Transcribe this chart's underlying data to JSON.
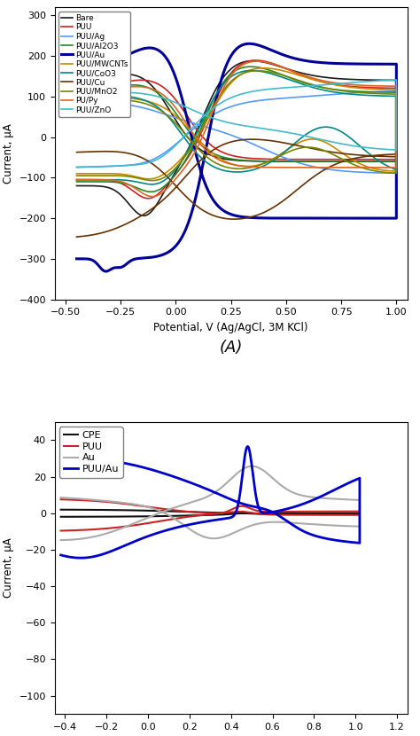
{
  "panel_A": {
    "xlabel": "Potential, V (Ag/AgCl, 3M KCl)",
    "ylabel": "Current, μA",
    "xlim": [
      -0.55,
      1.05
    ],
    "ylim": [
      -400,
      320
    ],
    "xticks": [
      -0.5,
      -0.25,
      0.0,
      0.25,
      0.5,
      0.75,
      1.0
    ],
    "yticks": [
      -400,
      -300,
      -200,
      -100,
      0,
      100,
      200,
      300
    ],
    "series": [
      {
        "label": "Bare",
        "color": "#1a1a1a",
        "lw": 1.2
      },
      {
        "label": "PUU",
        "color": "#cc2222",
        "lw": 1.2
      },
      {
        "label": "PUU/Ag",
        "color": "#5599ff",
        "lw": 1.2
      },
      {
        "label": "PUU/Al2O3",
        "color": "#228b22",
        "lw": 1.2
      },
      {
        "label": "PUU/Au",
        "color": "#000099",
        "lw": 2.2
      },
      {
        "label": "PUU/MWCNTs",
        "color": "#cc8800",
        "lw": 1.2
      },
      {
        "label": "PUU/CoO3",
        "color": "#008888",
        "lw": 1.2
      },
      {
        "label": "PUU/Cu",
        "color": "#663300",
        "lw": 1.2
      },
      {
        "label": "PUU/MnO2",
        "color": "#778800",
        "lw": 1.2
      },
      {
        "label": "PU/Py",
        "color": "#dd6622",
        "lw": 1.2
      },
      {
        "label": "PUU/ZnO",
        "color": "#44bbcc",
        "lw": 1.2
      }
    ]
  },
  "panel_B": {
    "xlabel": "Potential, V",
    "ylabel": "Current, μA",
    "xlim": [
      -0.45,
      1.25
    ],
    "ylim": [
      -110,
      50
    ],
    "xticks": [
      -0.4,
      -0.2,
      0.0,
      0.2,
      0.4,
      0.6,
      0.8,
      1.0,
      1.2
    ],
    "yticks": [
      -100,
      -80,
      -60,
      -40,
      -20,
      0,
      20,
      40
    ],
    "series": [
      {
        "label": "CPE",
        "color": "#111111",
        "lw": 1.5
      },
      {
        "label": "PUU",
        "color": "#cc2222",
        "lw": 1.5
      },
      {
        "label": "Au",
        "color": "#aaaaaa",
        "lw": 1.5
      },
      {
        "label": "PUU/Au",
        "color": "#0000cc",
        "lw": 2.0
      }
    ]
  }
}
